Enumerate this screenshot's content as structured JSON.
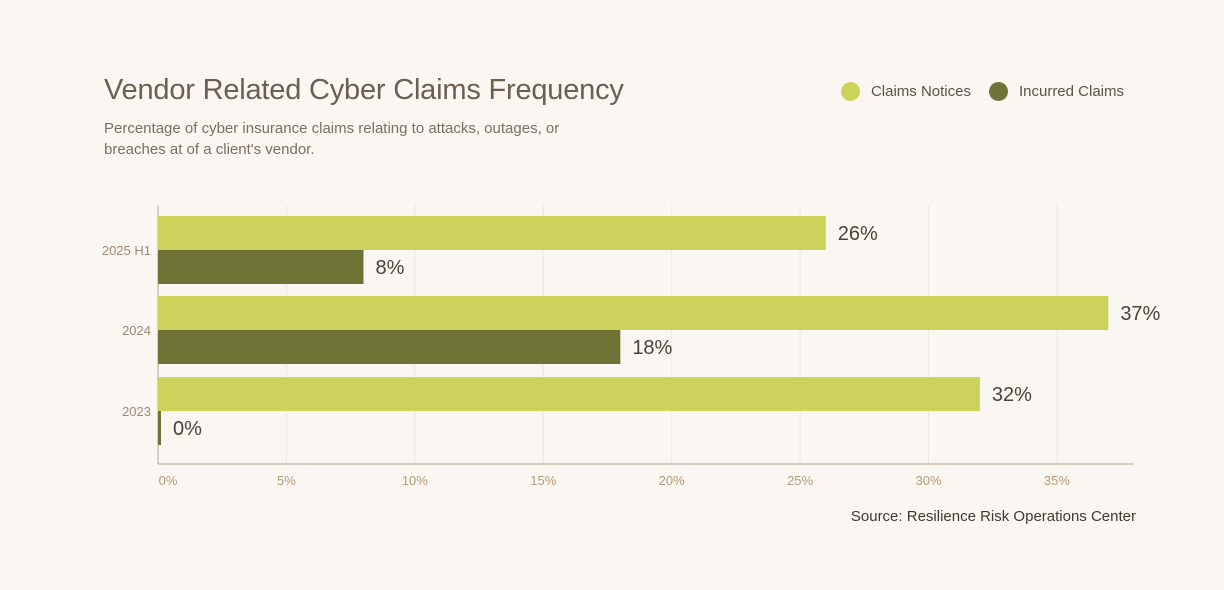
{
  "header": {
    "title": "Vendor Related Cyber Claims Frequency",
    "subtitle": "Percentage of cyber insurance claims relating to attacks, outages, or breaches at of a client's vendor."
  },
  "legend": {
    "items": [
      {
        "label": "Claims Notices",
        "color": "#cdd35a"
      },
      {
        "label": "Incurred Claims",
        "color": "#6f7436"
      }
    ]
  },
  "source": "Source: Resilience Risk Operations Center",
  "chart_data": {
    "type": "bar",
    "orientation": "horizontal",
    "title": "Vendor Related Cyber Claims Frequency",
    "subtitle": "Percentage of cyber insurance claims relating to attacks, outages, or breaches at of a client's vendor.",
    "categories": [
      "2025 H1",
      "2024",
      "2023"
    ],
    "series": [
      {
        "name": "Claims Notices",
        "color": "#cdd35a",
        "values": [
          26,
          37,
          32
        ],
        "labels": [
          "26%",
          "37%",
          "32%"
        ]
      },
      {
        "name": "Incurred Claims",
        "color": "#6f7436",
        "values": [
          8,
          18,
          0
        ],
        "labels": [
          "8%",
          "18%",
          "0%"
        ]
      }
    ],
    "xlim": [
      0,
      38
    ],
    "xticks": [
      0,
      5,
      10,
      15,
      20,
      25,
      30,
      35
    ],
    "xtick_labels": [
      "0%",
      "5%",
      "10%",
      "15%",
      "20%",
      "25%",
      "30%",
      "35%"
    ],
    "grid": true,
    "legend_position": "top-right"
  }
}
